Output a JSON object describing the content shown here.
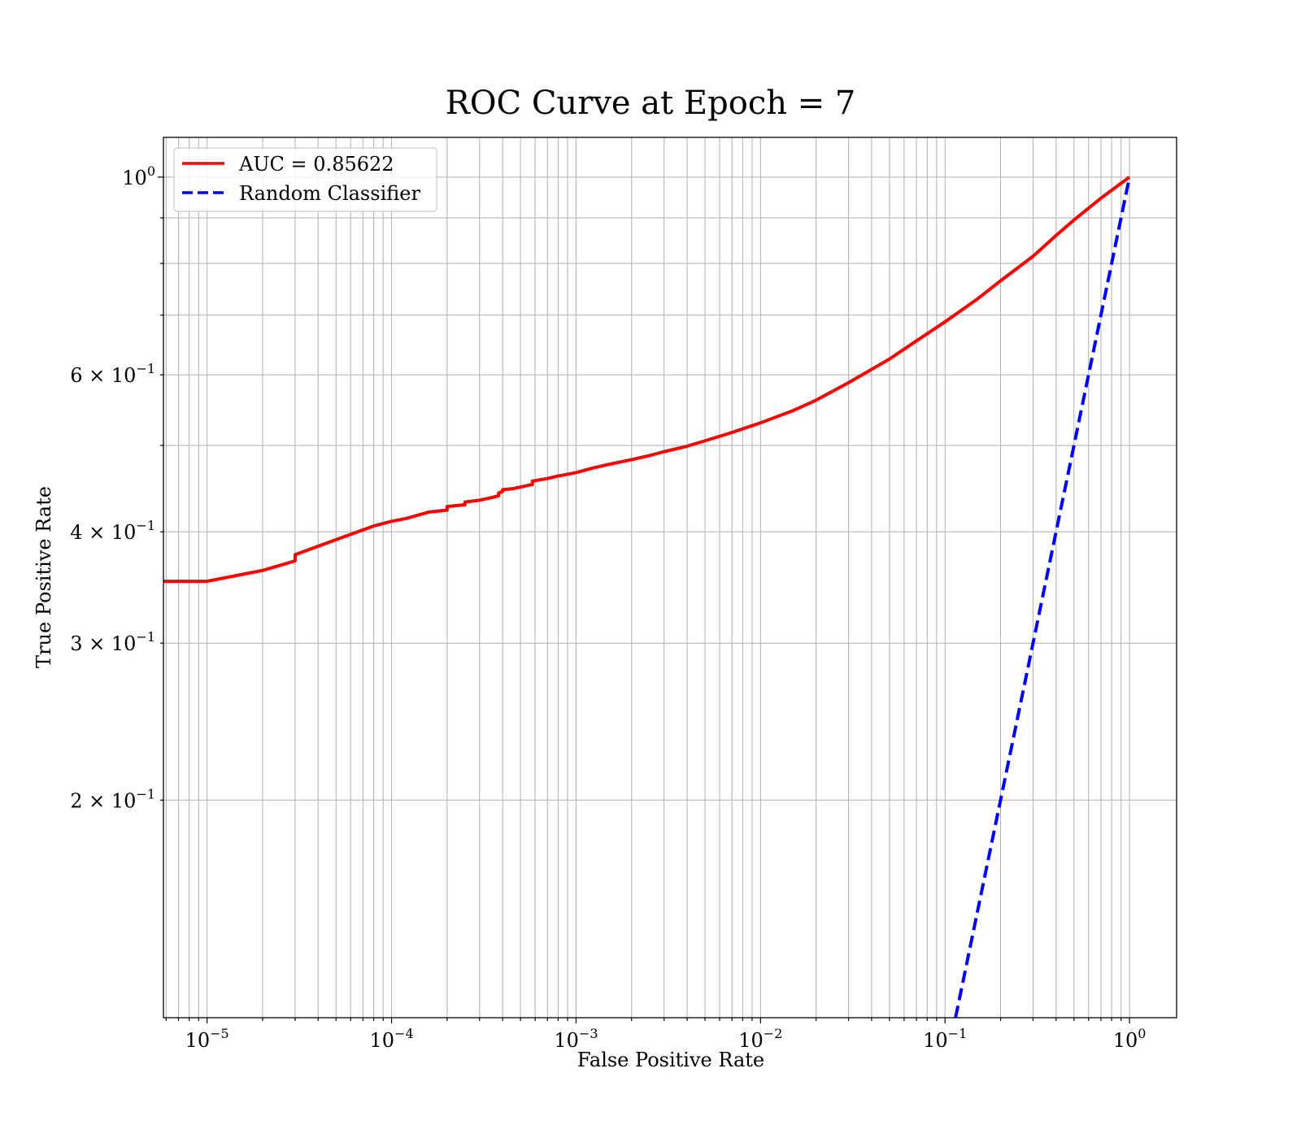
{
  "chart_data": {
    "type": "line",
    "title": "ROC Curve at Epoch = 7",
    "xlabel": "False Positive Rate",
    "ylabel": "True Positive Rate",
    "xscale": "log",
    "yscale": "log",
    "xlim": [
      5.8e-06,
      1.8
    ],
    "ylim": [
      0.114,
      1.108
    ],
    "grid": "both-major-minor",
    "legend_position": "top-left",
    "x_ticks": [
      {
        "value": 1e-05,
        "base": "10",
        "exp": "−5"
      },
      {
        "value": 0.0001,
        "base": "10",
        "exp": "−4"
      },
      {
        "value": 0.001,
        "base": "10",
        "exp": "−3"
      },
      {
        "value": 0.01,
        "base": "10",
        "exp": "−2"
      },
      {
        "value": 0.1,
        "base": "10",
        "exp": "−1"
      },
      {
        "value": 1,
        "base": "10",
        "exp": "0"
      }
    ],
    "y_ticks": [
      {
        "value": 1,
        "base": "10",
        "exp": "0"
      },
      {
        "value": 0.6,
        "base": "6 × 10",
        "exp": "−1"
      },
      {
        "value": 0.4,
        "base": "4 × 10",
        "exp": "−1"
      },
      {
        "value": 0.3,
        "base": "3 × 10",
        "exp": "−1"
      },
      {
        "value": 0.2,
        "base": "2 × 10",
        "exp": "−1"
      }
    ],
    "series": [
      {
        "name": "AUC = 0.85622",
        "color": "#ff0000",
        "style": "solid",
        "x": [
          5.8e-06,
          1e-05,
          2e-05,
          3e-05,
          3e-05,
          5e-05,
          8e-05,
          0.0001,
          0.00012,
          0.00016,
          0.0002,
          0.0002,
          0.00025,
          0.00025,
          0.0003,
          0.00035,
          0.00038,
          0.00038,
          0.0004,
          0.0004,
          0.00045,
          0.0005,
          0.00055,
          0.00058,
          0.00058,
          0.0007,
          0.0008,
          0.001,
          0.0012,
          0.0015,
          0.002,
          0.0025,
          0.003,
          0.004,
          0.005,
          0.007,
          0.01,
          0.015,
          0.02,
          0.03,
          0.05,
          0.07,
          0.1,
          0.15,
          0.2,
          0.3,
          0.4,
          0.5,
          0.7,
          1
        ],
        "y": [
          0.352,
          0.352,
          0.362,
          0.371,
          0.377,
          0.392,
          0.406,
          0.411,
          0.414,
          0.421,
          0.423,
          0.427,
          0.429,
          0.432,
          0.434,
          0.437,
          0.439,
          0.442,
          0.444,
          0.446,
          0.447,
          0.449,
          0.451,
          0.452,
          0.456,
          0.459,
          0.462,
          0.466,
          0.471,
          0.476,
          0.482,
          0.487,
          0.492,
          0.499,
          0.506,
          0.517,
          0.53,
          0.547,
          0.562,
          0.588,
          0.625,
          0.655,
          0.688,
          0.73,
          0.765,
          0.815,
          0.86,
          0.895,
          0.947,
          1.0
        ]
      },
      {
        "name": "Random Classifier",
        "color": "#0000ff",
        "style": "dashed",
        "x": [
          0.114,
          1
        ],
        "y": [
          0.114,
          1
        ]
      }
    ]
  }
}
